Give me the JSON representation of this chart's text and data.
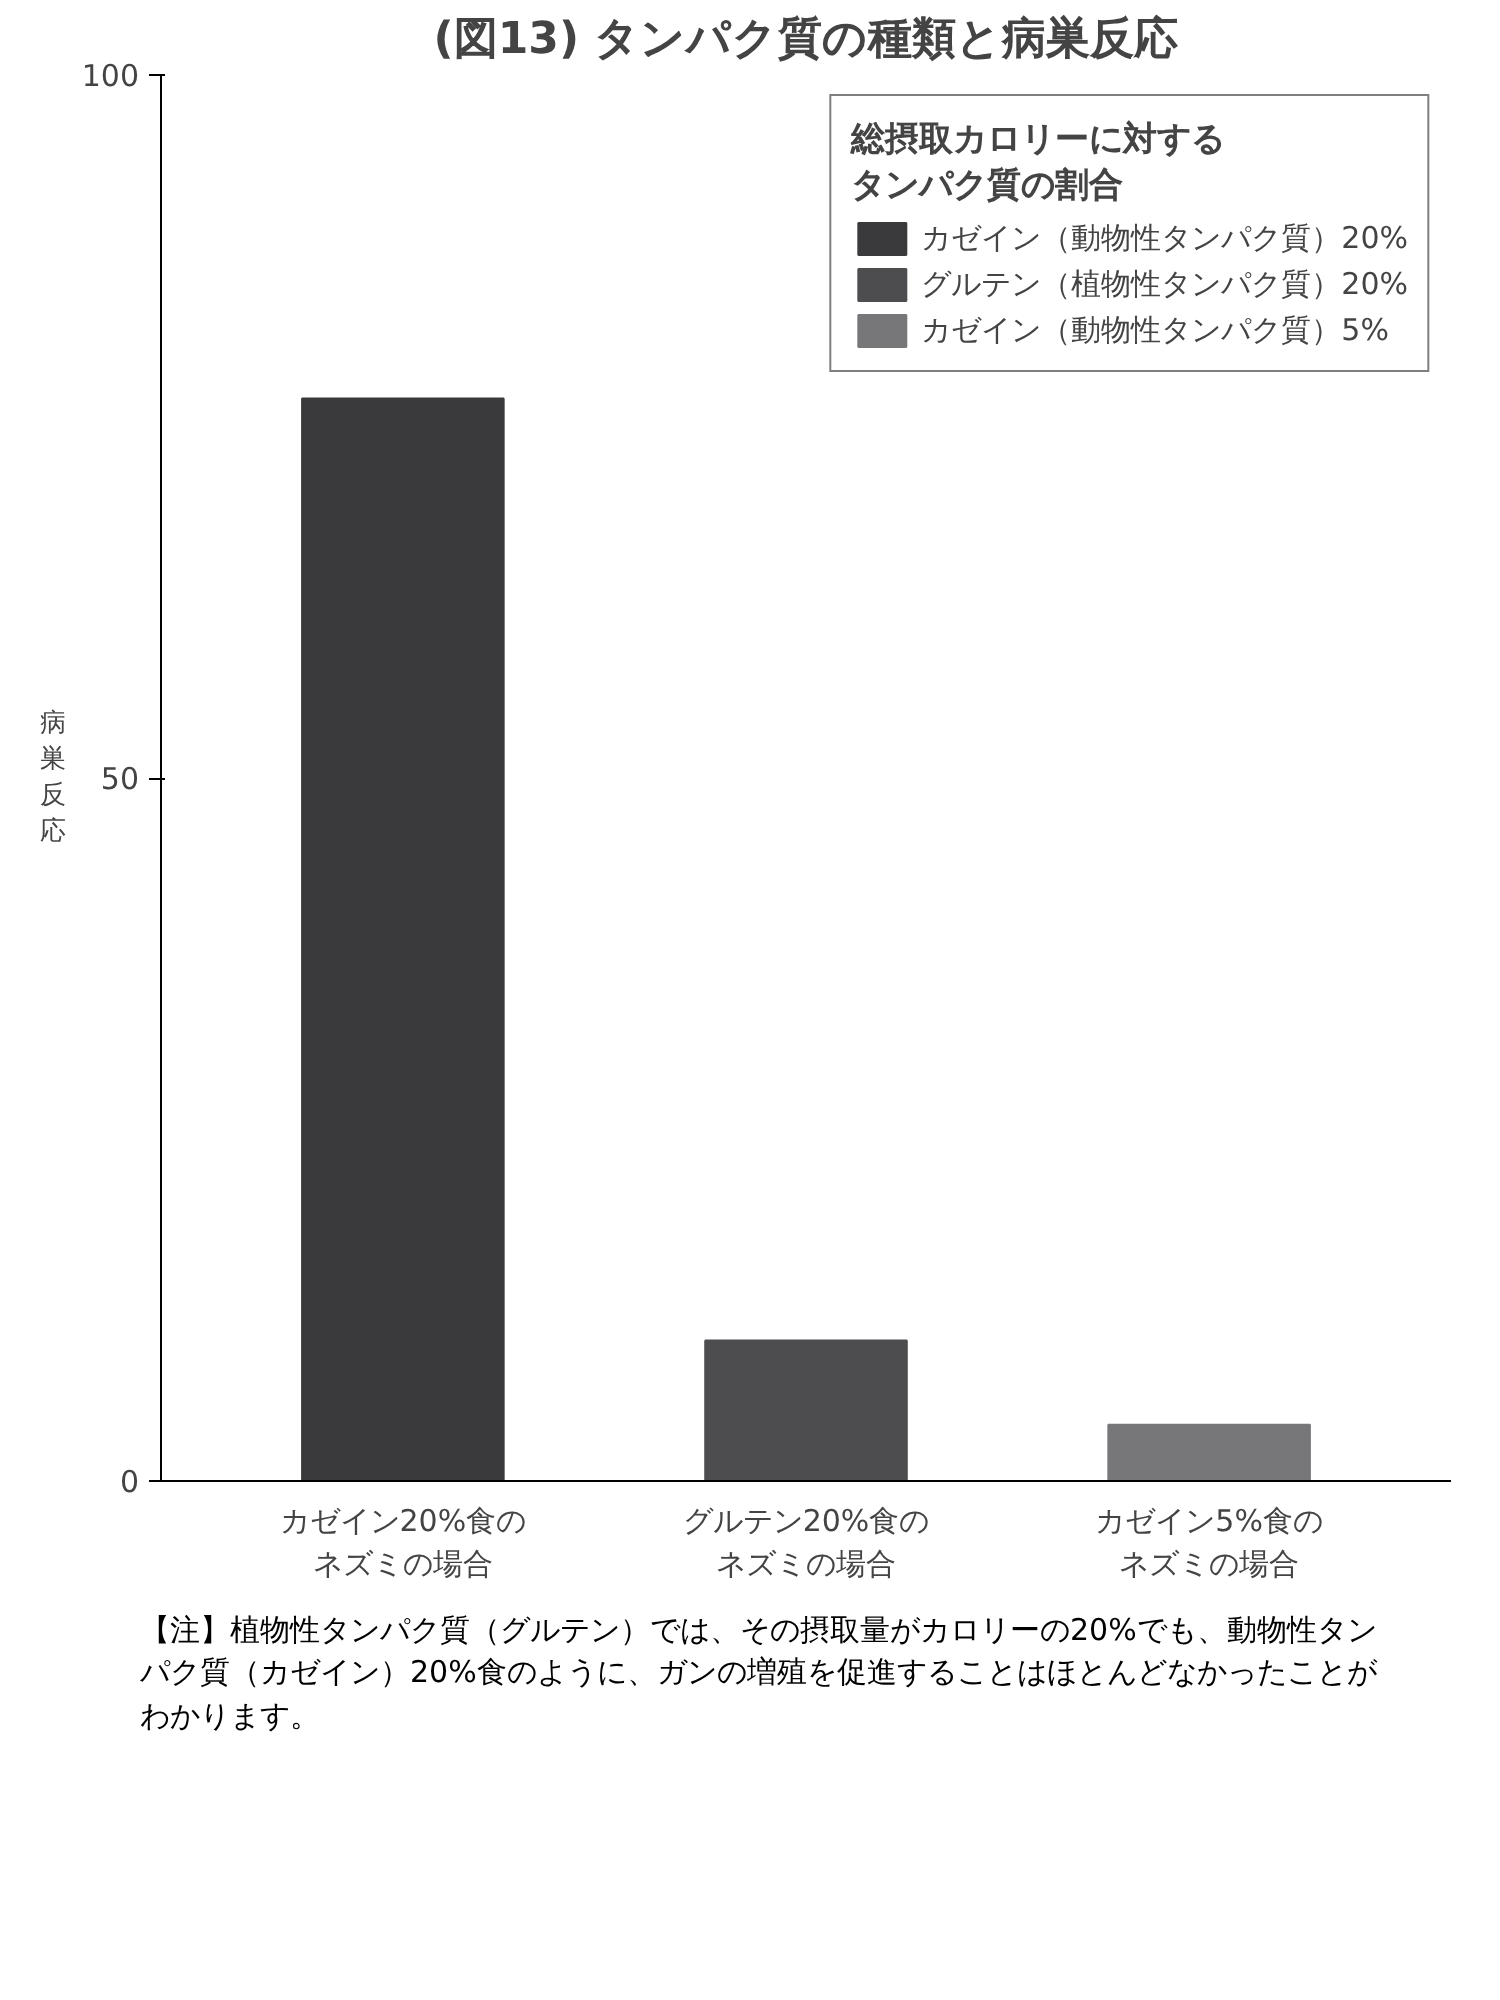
{
  "chart_data": {
    "type": "bar",
    "title": "(図13) タンパク質の種類と病巣反応",
    "ylabel": "病巣反応",
    "categories": [
      "カゼイン20%食のネズミの場合",
      "グルテン20%食のネズミの場合",
      "カゼイン5%食のネズミの場合"
    ],
    "legend_title": "総摂取カロリーに対するタンパク質の割合",
    "series": [
      {
        "name": "カゼイン（動物性タンパク質）20%",
        "color": "#3a3a3c",
        "values": [
          77,
          null,
          null
        ]
      },
      {
        "name": "グルテン（植物性タンパク質）20%",
        "color": "#4d4d50",
        "values": [
          null,
          10,
          null
        ]
      },
      {
        "name": "カゼイン（動物性タンパク質）5%",
        "color": "#77777a",
        "values": [
          null,
          null,
          4
        ]
      }
    ],
    "ylim": [
      0,
      100
    ],
    "yticks": [
      0,
      50,
      100
    ],
    "grid": false,
    "legend": "top right",
    "annotations": [
      "【注】植物性タンパク質（グルテン）では、その摂取量がカロリーの20%でも、動物性タンパク質（カゼイン）20%食のように、ガンの増殖を促進することはほとんどなかったことがわかります。"
    ]
  }
}
